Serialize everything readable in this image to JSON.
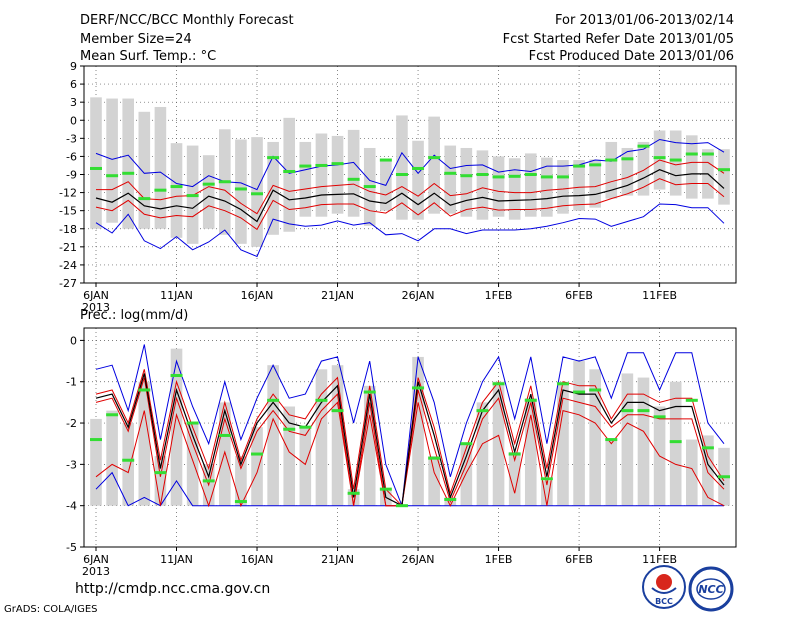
{
  "header": {
    "title": "DERF/NCC/BCC Monthly Forecast",
    "member_size": "Member Size=24",
    "variable": "Mean Surf. Temp.: °C",
    "period": "For 2013/01/06-2013/02/14",
    "started": "Fcst Started Refer Date 2013/01/05",
    "produced": "Fcst Produced Date 2013/01/06"
  },
  "footer": {
    "url": "http://cmdp.ncc.cma.gov.cn",
    "grads": "GrADS: COLA/IGES"
  },
  "logos": {
    "bcc": "BCC",
    "ncc": "NCC"
  },
  "colors": {
    "bar": "#d3d3d3",
    "mean": "#000000",
    "spread": "#e00000",
    "envelope": "#0000e0",
    "obs": "#33dd33",
    "grid": "#555555"
  },
  "chart_data": [
    {
      "type": "line",
      "title": "Mean Surf. Temp.: °C",
      "year_label": "2013",
      "x_tick_labels": [
        "6JAN",
        "11JAN",
        "16JAN",
        "21JAN",
        "26JAN",
        "1FEB",
        "6FEB",
        "11FEB"
      ],
      "y_ticks": [
        9,
        6,
        3,
        0,
        -3,
        -6,
        -9,
        -12,
        -15,
        -18,
        -21,
        -24,
        -27
      ],
      "ylim": [
        -27,
        9
      ],
      "days": 40,
      "series": [
        {
          "name": "bar_top",
          "values": [
            3.8,
            3.6,
            3.6,
            1.4,
            2.2,
            -3.8,
            -4.2,
            -5.8,
            -1.5,
            -3.2,
            -2.8,
            -3.6,
            0.4,
            -3.6,
            -2.2,
            -2.6,
            -1.6,
            -4.6,
            -6.4,
            0.8,
            -3.4,
            0.6,
            -4.2,
            -4.6,
            -5.0,
            -6.0,
            -6.3,
            -5.5,
            -6.2,
            -6.6,
            -6.6,
            -6.5,
            -3.6,
            -4.6,
            -3.6,
            -1.7,
            -1.7,
            -2.5,
            -4.8,
            -4.8
          ]
        },
        {
          "name": "bar_bottom",
          "values": [
            -18.0,
            -17.0,
            -18.0,
            -18.0,
            -18.0,
            -19.5,
            -20.5,
            -18.0,
            -19.0,
            -20.5,
            -21.0,
            -19.0,
            -18.5,
            -16.0,
            -16.0,
            -15.5,
            -16.0,
            -17.5,
            -15.0,
            -16.5,
            -16.5,
            -15.5,
            -15.5,
            -16.0,
            -16.5,
            -16.0,
            -16.5,
            -16.0,
            -16.0,
            -15.5,
            -15.0,
            -14.5,
            -13.0,
            -12.5,
            -12.5,
            -11.5,
            -12.5,
            -13.0,
            -13.0,
            -14.0
          ]
        },
        {
          "name": "max",
          "values": [
            -5.5,
            -6.5,
            -5.8,
            -8.8,
            -8.6,
            -10.5,
            -11.0,
            -9.2,
            -10.2,
            -10.4,
            -11.5,
            -6.0,
            -8.8,
            -8.2,
            -7.6,
            -7.4,
            -7.0,
            -10.0,
            -10.8,
            -5.4,
            -8.8,
            -5.8,
            -8.0,
            -7.5,
            -7.4,
            -8.6,
            -8.2,
            -8.5,
            -7.6,
            -7.6,
            -7.4,
            -6.6,
            -6.8,
            -5.2,
            -4.8,
            -3.2,
            -3.7,
            -3.9,
            -3.7,
            -5.3
          ]
        },
        {
          "name": "upper",
          "values": [
            -11.5,
            -11.5,
            -10.2,
            -13.0,
            -13.2,
            -12.6,
            -12.5,
            -11.0,
            -11.6,
            -13.8,
            -15.5,
            -10.8,
            -11.8,
            -11.4,
            -11.0,
            -10.8,
            -10.6,
            -11.8,
            -12.4,
            -11.0,
            -12.6,
            -10.5,
            -12.5,
            -12.2,
            -11.2,
            -11.8,
            -12.0,
            -12.0,
            -11.6,
            -11.4,
            -11.1,
            -11.0,
            -10.2,
            -9.5,
            -8.3,
            -6.6,
            -7.4,
            -7.0,
            -7.0,
            -8.8
          ]
        },
        {
          "name": "mean",
          "values": [
            -12.9,
            -13.6,
            -12.1,
            -14.2,
            -14.7,
            -14.2,
            -14.6,
            -12.6,
            -13.4,
            -14.8,
            -16.8,
            -11.6,
            -13.2,
            -12.9,
            -12.4,
            -12.3,
            -12.2,
            -13.4,
            -13.8,
            -12.1,
            -14.0,
            -12.1,
            -14.1,
            -13.3,
            -12.8,
            -13.4,
            -13.3,
            -13.2,
            -13.0,
            -12.6,
            -12.5,
            -12.3,
            -11.6,
            -10.8,
            -9.6,
            -8.2,
            -9.2,
            -8.9,
            -8.9,
            -11.3
          ]
        },
        {
          "name": "lower",
          "values": [
            -14.4,
            -15.0,
            -13.3,
            -15.6,
            -16.2,
            -15.8,
            -16.0,
            -14.2,
            -15.0,
            -16.2,
            -18.1,
            -13.3,
            -14.8,
            -14.5,
            -14.0,
            -13.9,
            -13.9,
            -15.0,
            -15.4,
            -13.7,
            -15.7,
            -13.7,
            -15.9,
            -14.8,
            -14.4,
            -14.9,
            -14.8,
            -14.8,
            -14.6,
            -14.2,
            -14.0,
            -13.9,
            -13.0,
            -12.2,
            -11.1,
            -9.7,
            -10.7,
            -10.5,
            -10.5,
            -12.7
          ]
        },
        {
          "name": "min",
          "values": [
            -17.0,
            -18.7,
            -15.6,
            -20.0,
            -21.3,
            -19.3,
            -21.5,
            -20.2,
            -18.2,
            -21.5,
            -22.6,
            -16.4,
            -17.2,
            -17.6,
            -17.4,
            -16.7,
            -17.4,
            -17.0,
            -19.0,
            -18.8,
            -20.0,
            -18.0,
            -18.0,
            -18.8,
            -18.2,
            -18.2,
            -18.2,
            -18.0,
            -17.6,
            -17.0,
            -16.3,
            -16.4,
            -17.6,
            -16.8,
            -16.0,
            -13.9,
            -14.0,
            -14.5,
            -14.5,
            -17.1
          ]
        },
        {
          "name": "observed",
          "values": [
            -8.0,
            -9.2,
            -8.8,
            -13.0,
            -11.6,
            -11.0,
            -12.5,
            -10.6,
            -10.2,
            -11.4,
            -12.2,
            -6.2,
            -8.5,
            -7.6,
            -7.5,
            -7.2,
            -9.8,
            -11.0,
            -6.6,
            -9.0,
            -8.0,
            -6.2,
            -8.8,
            -9.2,
            -9.0,
            -9.4,
            -9.3,
            -9.0,
            -9.4,
            -9.4,
            -7.6,
            -7.4,
            -6.6,
            -6.4,
            -4.3,
            -6.2,
            -6.6,
            -5.6,
            -5.6,
            -8.2
          ]
        }
      ]
    },
    {
      "type": "line",
      "title": "Prec.: log(mm/d)",
      "year_label": "2013",
      "x_tick_labels": [
        "6JAN",
        "11JAN",
        "16JAN",
        "21JAN",
        "26JAN",
        "1FEB",
        "6FEB",
        "11FEB"
      ],
      "y_ticks": [
        0,
        -1,
        -2,
        -3,
        -4,
        -5
      ],
      "ylim": [
        -5,
        0.3
      ],
      "days": 40,
      "series": [
        {
          "name": "bar_top",
          "values": [
            -1.9,
            -1.7,
            -2.0,
            -1.0,
            -2.8,
            -0.2,
            -2.0,
            -3.0,
            -1.5,
            -2.8,
            -2.1,
            -0.6,
            -1.6,
            -2.1,
            -0.7,
            -0.6,
            -3.6,
            -1.1,
            -3.6,
            -4.0,
            -0.4,
            -2.8,
            -3.8,
            -2.5,
            -1.5,
            -1.0,
            -2.7,
            -1.4,
            -3.4,
            -1.0,
            -0.5,
            -0.7,
            -2.4,
            -0.8,
            -0.9,
            -1.6,
            -1.0,
            -2.4,
            -2.3,
            -2.6
          ]
        },
        {
          "name": "max",
          "values": [
            -0.7,
            -0.6,
            -1.7,
            -0.1,
            -2.4,
            -0.5,
            -1.6,
            -2.5,
            -1.0,
            -2.4,
            -1.4,
            -0.6,
            -1.4,
            -1.3,
            -0.5,
            -0.4,
            -2.0,
            -0.5,
            -3.0,
            -4.0,
            -0.4,
            -1.5,
            -3.3,
            -2.0,
            -1.0,
            -0.4,
            -1.9,
            -0.4,
            -2.5,
            -0.4,
            -0.5,
            -0.4,
            -1.4,
            -0.3,
            -0.3,
            -1.2,
            -0.3,
            -0.3,
            -2.0,
            -2.5
          ]
        },
        {
          "name": "upper",
          "values": [
            -1.3,
            -1.2,
            -2.0,
            -0.7,
            -2.9,
            -1.0,
            -2.1,
            -3.1,
            -1.5,
            -2.9,
            -1.9,
            -1.3,
            -1.8,
            -1.9,
            -1.3,
            -0.9,
            -3.6,
            -1.1,
            -3.6,
            -4.0,
            -0.9,
            -2.1,
            -3.7,
            -2.6,
            -1.5,
            -1.0,
            -2.5,
            -1.1,
            -3.1,
            -1.0,
            -1.1,
            -1.1,
            -1.9,
            -1.3,
            -1.3,
            -1.5,
            -1.4,
            -1.4,
            -2.8,
            -3.4
          ]
        },
        {
          "name": "mean",
          "values": [
            -1.4,
            -1.3,
            -2.1,
            -0.8,
            -3.1,
            -1.2,
            -2.3,
            -3.3,
            -1.7,
            -3.0,
            -2.0,
            -1.5,
            -2.0,
            -2.1,
            -1.5,
            -1.1,
            -3.8,
            -1.3,
            -3.8,
            -4.0,
            -1.0,
            -2.3,
            -3.8,
            -2.8,
            -1.7,
            -1.2,
            -2.7,
            -1.3,
            -3.3,
            -1.2,
            -1.3,
            -1.3,
            -2.0,
            -1.5,
            -1.5,
            -1.7,
            -1.6,
            -1.6,
            -3.0,
            -3.5
          ]
        },
        {
          "name": "lower",
          "values": [
            -1.5,
            -1.4,
            -2.2,
            -0.9,
            -3.3,
            -1.4,
            -2.5,
            -3.5,
            -1.9,
            -3.1,
            -2.2,
            -1.7,
            -2.2,
            -2.3,
            -1.7,
            -1.3,
            -4.0,
            -1.5,
            -4.0,
            -4.0,
            -1.2,
            -2.6,
            -3.9,
            -3.0,
            -1.9,
            -1.4,
            -2.9,
            -1.5,
            -3.5,
            -1.4,
            -1.5,
            -1.6,
            -2.1,
            -1.8,
            -1.8,
            -1.9,
            -1.9,
            -1.9,
            -3.2,
            -3.6
          ]
        },
        {
          "name": "lower2",
          "values": [
            -3.3,
            -3.0,
            -3.2,
            -1.7,
            -4.0,
            -1.8,
            -2.9,
            -4.0,
            -2.7,
            -4.0,
            -3.2,
            -1.9,
            -2.7,
            -3.0,
            -1.9,
            -1.5,
            -4.0,
            -1.8,
            -4.0,
            -4.0,
            -1.5,
            -3.2,
            -4.0,
            -3.2,
            -2.5,
            -2.3,
            -3.7,
            -1.8,
            -4.0,
            -1.7,
            -1.8,
            -2.0,
            -2.5,
            -2.0,
            -2.2,
            -2.8,
            -3.0,
            -3.1,
            -3.8,
            -4.0
          ]
        },
        {
          "name": "min",
          "values": [
            -3.6,
            -3.2,
            -4.0,
            -3.8,
            -4.0,
            -3.4,
            -4.0,
            -4.0,
            -4.0,
            -4.0,
            -4.0,
            -4.0,
            -4.0,
            -4.0,
            -4.0,
            -4.0,
            -4.0,
            -4.0,
            -4.0,
            -4.0,
            -4.0,
            -4.0,
            -4.0,
            -4.0,
            -4.0,
            -4.0,
            -4.0,
            -4.0,
            -4.0,
            -4.0,
            -4.0,
            -4.0,
            -4.0,
            -4.0,
            -4.0,
            -4.0,
            -4.0,
            -4.0,
            -4.0,
            -4.0
          ]
        },
        {
          "name": "observed",
          "values": [
            -2.4,
            -1.8,
            -2.9,
            -1.2,
            -3.2,
            -0.85,
            -2.0,
            -3.4,
            -2.3,
            -3.9,
            -2.75,
            -1.45,
            -2.15,
            -2.1,
            -1.45,
            -1.7,
            -3.7,
            -1.25,
            -3.6,
            -4.0,
            -1.15,
            -2.85,
            -3.85,
            -2.5,
            -1.7,
            -1.05,
            -2.75,
            -1.45,
            -3.35,
            -1.05,
            -1.25,
            -1.2,
            -2.4,
            -1.7,
            -1.7,
            -1.85,
            -2.45,
            -1.45,
            -2.6,
            -3.3
          ]
        }
      ]
    }
  ]
}
